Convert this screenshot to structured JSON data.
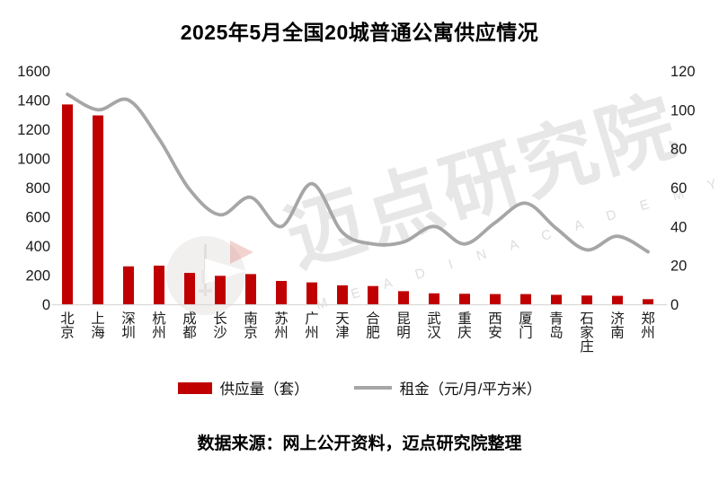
{
  "chart_data": {
    "type": "combo-bar-line",
    "title": "2025年5月全国20城普通公寓供应情况",
    "categories": [
      "北京",
      "上海",
      "深圳",
      "杭州",
      "成都",
      "长沙",
      "南京",
      "苏州",
      "广州",
      "天津",
      "合肥",
      "昆明",
      "武汉",
      "重庆",
      "西安",
      "厦门",
      "青岛",
      "石家庄",
      "济南",
      "郑州"
    ],
    "series": [
      {
        "name": "供应量（套）",
        "type": "bar",
        "axis": "left",
        "color": "#C00000",
        "values": [
          1370,
          1295,
          260,
          265,
          215,
          195,
          207,
          160,
          150,
          130,
          125,
          90,
          75,
          72,
          70,
          70,
          65,
          60,
          58,
          35
        ]
      },
      {
        "name": "租金（元/月/平方米）",
        "type": "line",
        "axis": "right",
        "color": "#A6A6A6",
        "values": [
          108,
          100,
          105,
          85,
          59,
          46,
          55,
          40,
          62,
          37,
          31,
          32,
          40,
          31,
          42,
          52,
          39,
          28,
          35,
          27
        ]
      }
    ],
    "left_axis": {
      "min": 0,
      "max": 1600,
      "step": 200,
      "ticks": [
        "0",
        "200",
        "400",
        "600",
        "800",
        "1000",
        "1200",
        "1400",
        "1600"
      ]
    },
    "right_axis": {
      "min": 0,
      "max": 120,
      "step": 20,
      "ticks": [
        "0",
        "20",
        "40",
        "60",
        "80",
        "100",
        "120"
      ]
    },
    "gridlines": "baseline-only",
    "legend_position": "bottom"
  },
  "legend": {
    "items": [
      {
        "label": "供应量（套）",
        "swatch": "bar",
        "color": "#C00000"
      },
      {
        "label": "租金（元/月/平方米）",
        "swatch": "line",
        "color": "#A6A6A6"
      }
    ]
  },
  "footer": {
    "source": "数据来源：网上公开资料，迈点研究院整理"
  },
  "watermark": {
    "text": "迈点研究院",
    "subtext": "M E A D I N  A C A D E M Y"
  },
  "colors": {
    "bar": "#C00000",
    "line": "#A6A6A6",
    "baseline": "#D9D9D9",
    "axis_text": "#1a1a1a",
    "background": "#FFFFFF"
  }
}
